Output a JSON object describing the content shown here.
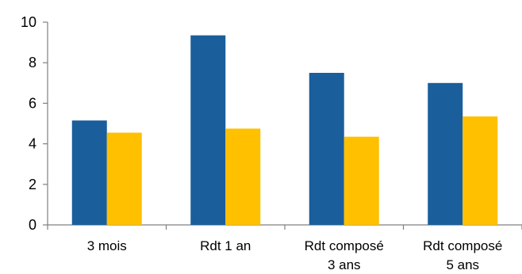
{
  "chart_data": {
    "type": "bar",
    "categories": [
      [
        "3 mois"
      ],
      [
        "Rdt 1 an"
      ],
      [
        "Rdt composé",
        "3 ans"
      ],
      [
        "Rdt composé",
        "5 ans"
      ]
    ],
    "series": [
      {
        "values": [
          5.15,
          9.35,
          7.5,
          7.0
        ],
        "color": "#1A5E9C"
      },
      {
        "values": [
          4.55,
          4.75,
          4.35,
          5.35
        ],
        "color": "#FFC000"
      }
    ],
    "ylim": [
      0,
      10
    ],
    "yticks": [
      "0",
      "2",
      "4",
      "6",
      "8",
      "10"
    ],
    "title": "",
    "xlabel": "",
    "ylabel": "",
    "grid": false,
    "legend": "none"
  }
}
